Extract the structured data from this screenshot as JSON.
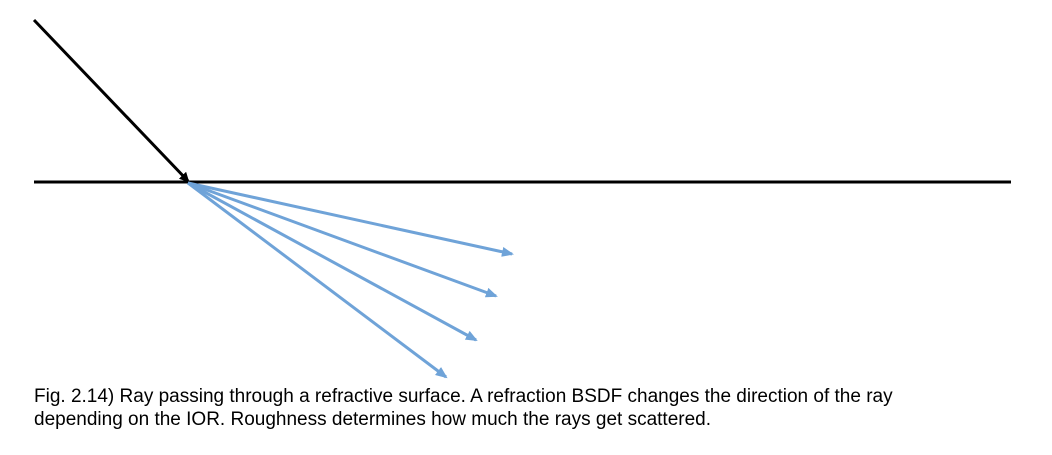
{
  "figure": {
    "caption_line_1": "Fig. 2.14) Ray passing through a refractive surface. A refraction BSDF changes the direction of the ray",
    "caption_line_2": "depending on the IOR. Roughness determines how much the rays get scattered."
  },
  "colors": {
    "surface": "#000000",
    "incident_ray": "#000000",
    "refracted_rays": "#6fa3d8",
    "caption_text": "#000000"
  },
  "diagram_elements": {
    "surface": "refractive-surface-line",
    "incident_ray": "incident-ray-arrow",
    "refracted_ray_count": 4
  }
}
